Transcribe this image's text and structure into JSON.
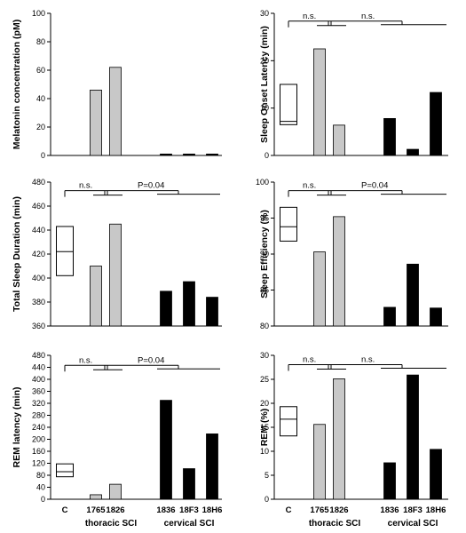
{
  "colors": {
    "thoracic": "#c8c8c8",
    "cervical": "#000000",
    "axis": "#000000"
  },
  "chart_data": [
    {
      "type": "bar",
      "ylabel": "Melatonin concentration (pM)",
      "ylim": [
        0,
        100
      ],
      "yticks": [
        0,
        20,
        40,
        60,
        80,
        100
      ],
      "categories": [
        "C",
        "1765",
        "1826",
        "1836",
        "18F3",
        "18H6"
      ],
      "control_box": null,
      "values": [
        null,
        46,
        62,
        1,
        1,
        1
      ],
      "groups": [
        "control",
        "thoracic",
        "thoracic",
        "cervical",
        "cervical",
        "cervical"
      ],
      "annotations": []
    },
    {
      "type": "bar",
      "ylabel": "Sleep Onset Latency (min)",
      "ylim": [
        0,
        30
      ],
      "yticks": [
        0,
        10,
        20,
        30
      ],
      "categories": [
        "C",
        "1765",
        "1826",
        "1836",
        "18F3",
        "18H6"
      ],
      "control_box": {
        "low": 6.5,
        "median": 7.2,
        "high": 15
      },
      "values": [
        null,
        22.5,
        6.4,
        7.8,
        1.3,
        13.3
      ],
      "groups": [
        "control",
        "thoracic",
        "thoracic",
        "cervical",
        "cervical",
        "cervical"
      ],
      "annotations": [
        {
          "text": "n.s."
        },
        {
          "text": "n.s."
        }
      ]
    },
    {
      "type": "bar",
      "ylabel": "Total Sleep Duration (min)",
      "ylim": [
        360,
        480
      ],
      "yticks": [
        360,
        380,
        400,
        420,
        440,
        460,
        480
      ],
      "categories": [
        "C",
        "1765",
        "1826",
        "1836",
        "18F3",
        "18H6"
      ],
      "control_box": {
        "low": 402,
        "median": 422,
        "high": 443
      },
      "values": [
        null,
        410,
        445,
        389,
        397,
        384
      ],
      "groups": [
        "control",
        "thoracic",
        "thoracic",
        "cervical",
        "cervical",
        "cervical"
      ],
      "annotations": [
        {
          "text": "n.s."
        },
        {
          "text": "P=0.04"
        }
      ]
    },
    {
      "type": "bar",
      "ylabel": "Sleep Efficiency (%)",
      "ylim": [
        80,
        100
      ],
      "yticks": [
        80,
        85,
        90,
        95,
        100
      ],
      "categories": [
        "C",
        "1765",
        "1826",
        "1836",
        "18F3",
        "18H6"
      ],
      "control_box": {
        "low": 91.8,
        "median": 93.8,
        "high": 96.5
      },
      "values": [
        null,
        90.3,
        95.2,
        82.6,
        88.6,
        82.5
      ],
      "groups": [
        "control",
        "thoracic",
        "thoracic",
        "cervical",
        "cervical",
        "cervical"
      ],
      "annotations": [
        {
          "text": "n.s."
        },
        {
          "text": "P=0.04"
        }
      ]
    },
    {
      "type": "bar",
      "ylabel": "REM latency (min)",
      "ylim": [
        0,
        480
      ],
      "yticks": [
        0,
        40,
        80,
        120,
        160,
        200,
        240,
        280,
        320,
        360,
        400,
        440,
        480
      ],
      "categories": [
        "C",
        "1765",
        "1826",
        "1836",
        "18F3",
        "18H6"
      ],
      "control_box": {
        "low": 75,
        "median": 92,
        "high": 118
      },
      "values": [
        null,
        15,
        50,
        330,
        102,
        218
      ],
      "groups": [
        "control",
        "thoracic",
        "thoracic",
        "cervical",
        "cervical",
        "cervical"
      ],
      "annotations": [
        {
          "text": "n.s."
        },
        {
          "text": "P=0.04"
        }
      ],
      "group_labels": [
        "thoracic SCI",
        "cervical SCI"
      ]
    },
    {
      "type": "bar",
      "ylabel": "REM (%)",
      "ylim": [
        0,
        30
      ],
      "yticks": [
        0,
        5,
        10,
        15,
        20,
        25,
        30
      ],
      "categories": [
        "C",
        "1765",
        "1826",
        "1836",
        "18F3",
        "18H6"
      ],
      "control_box": {
        "low": 13.2,
        "median": 16.7,
        "high": 19.3
      },
      "values": [
        null,
        15.6,
        25.1,
        7.6,
        25.9,
        10.4
      ],
      "groups": [
        "control",
        "thoracic",
        "thoracic",
        "cervical",
        "cervical",
        "cervical"
      ],
      "annotations": [
        {
          "text": "n.s."
        },
        {
          "text": "n.s."
        }
      ],
      "group_labels": [
        "thoracic SCI",
        "cervical SCI"
      ]
    }
  ]
}
